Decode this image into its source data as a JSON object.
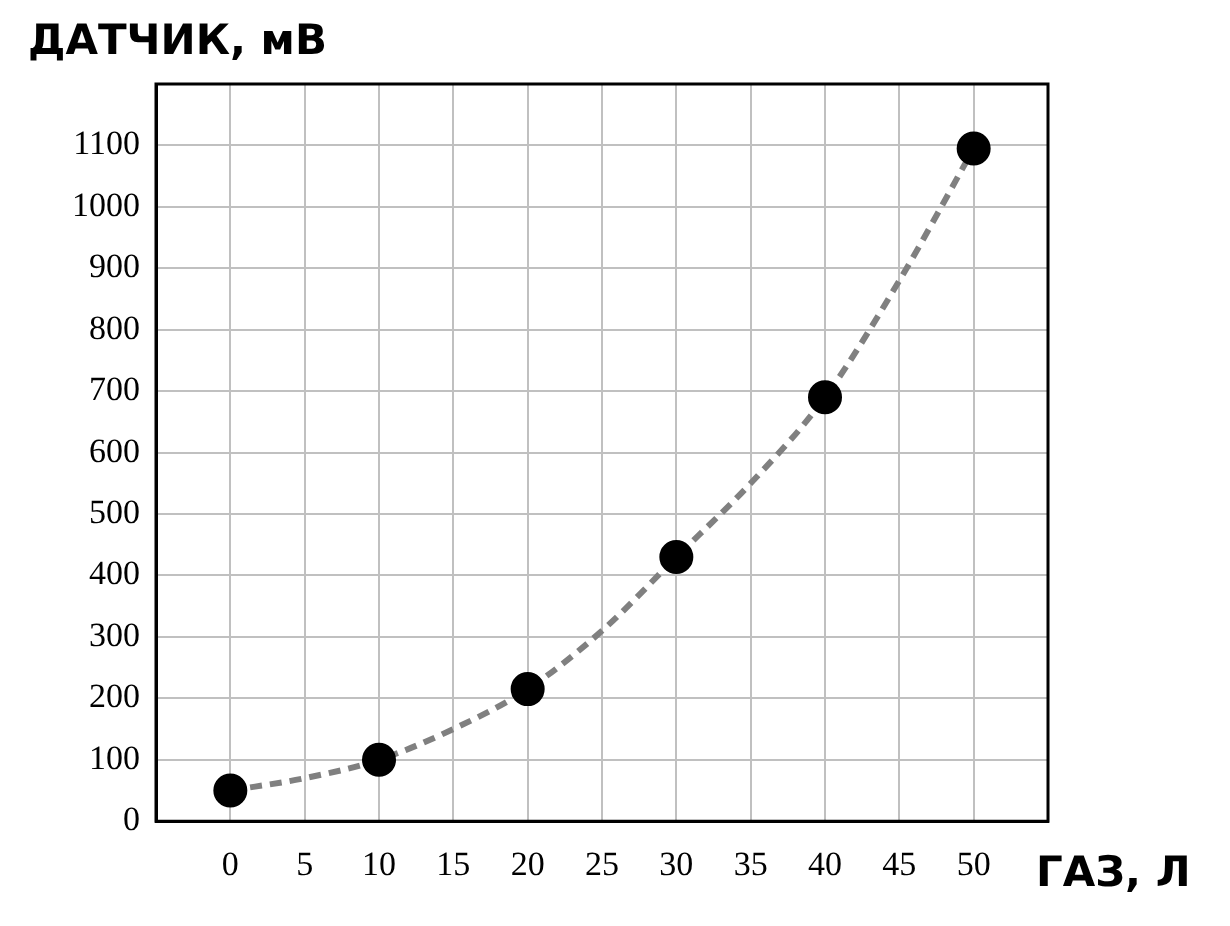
{
  "chart_data": {
    "type": "scatter",
    "xlabel": "ГАЗ, Л",
    "ylabel": "ДАТЧИК, мВ",
    "xlim": [
      -5,
      55
    ],
    "xticks": [
      0,
      5,
      10,
      15,
      20,
      25,
      30,
      35,
      40,
      45,
      50
    ],
    "ylim": [
      0,
      1200
    ],
    "yticks": [
      0,
      100,
      200,
      300,
      400,
      500,
      600,
      700,
      800,
      900,
      1000,
      1100
    ],
    "grid": true,
    "marker": "circle",
    "series": [
      {
        "type": "line",
        "color": "#808080",
        "line_style": "dashed",
        "marker": "none",
        "x": [
          0,
          5,
          10,
          15,
          20,
          25,
          30,
          35,
          40,
          45,
          50
        ],
        "values": [
          50,
          70,
          100,
          150,
          215,
          310,
          430,
          550,
          690,
          880,
          1095
        ]
      },
      {
        "color": "#000000",
        "x": [
          0,
          10,
          20,
          30,
          40,
          50
        ],
        "values": [
          50,
          100,
          215,
          430,
          690,
          1095
        ]
      }
    ]
  }
}
